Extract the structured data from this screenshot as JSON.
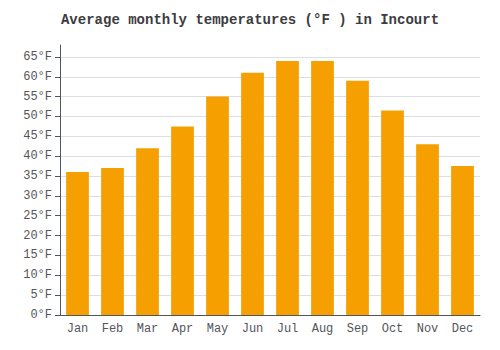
{
  "chart_data": {
    "type": "bar",
    "title": "Average monthly temperatures (°F ) in Incourt",
    "categories": [
      "Jan",
      "Feb",
      "Mar",
      "Apr",
      "May",
      "Jun",
      "Jul",
      "Aug",
      "Sep",
      "Oct",
      "Nov",
      "Dec"
    ],
    "values": [
      36,
      37,
      42,
      47.5,
      55,
      61,
      64,
      64,
      59,
      51.5,
      43,
      37.5
    ],
    "color": "#F5A000",
    "ylim": [
      0,
      68
    ],
    "yticks": [
      {
        "value": 0,
        "label": "0°F"
      },
      {
        "value": 5,
        "label": "5°F"
      },
      {
        "value": 10,
        "label": "10°F"
      },
      {
        "value": 15,
        "label": "15°F"
      },
      {
        "value": 20,
        "label": "20°F"
      },
      {
        "value": 25,
        "label": "25°F"
      },
      {
        "value": 30,
        "label": "30°F"
      },
      {
        "value": 35,
        "label": "35°F"
      },
      {
        "value": 40,
        "label": "40°F"
      },
      {
        "value": 45,
        "label": "45°F"
      },
      {
        "value": 50,
        "label": "50°F"
      },
      {
        "value": 55,
        "label": "55°F"
      },
      {
        "value": 60,
        "label": "60°F"
      },
      {
        "value": 65,
        "label": "65°F"
      }
    ],
    "grid": true
  }
}
